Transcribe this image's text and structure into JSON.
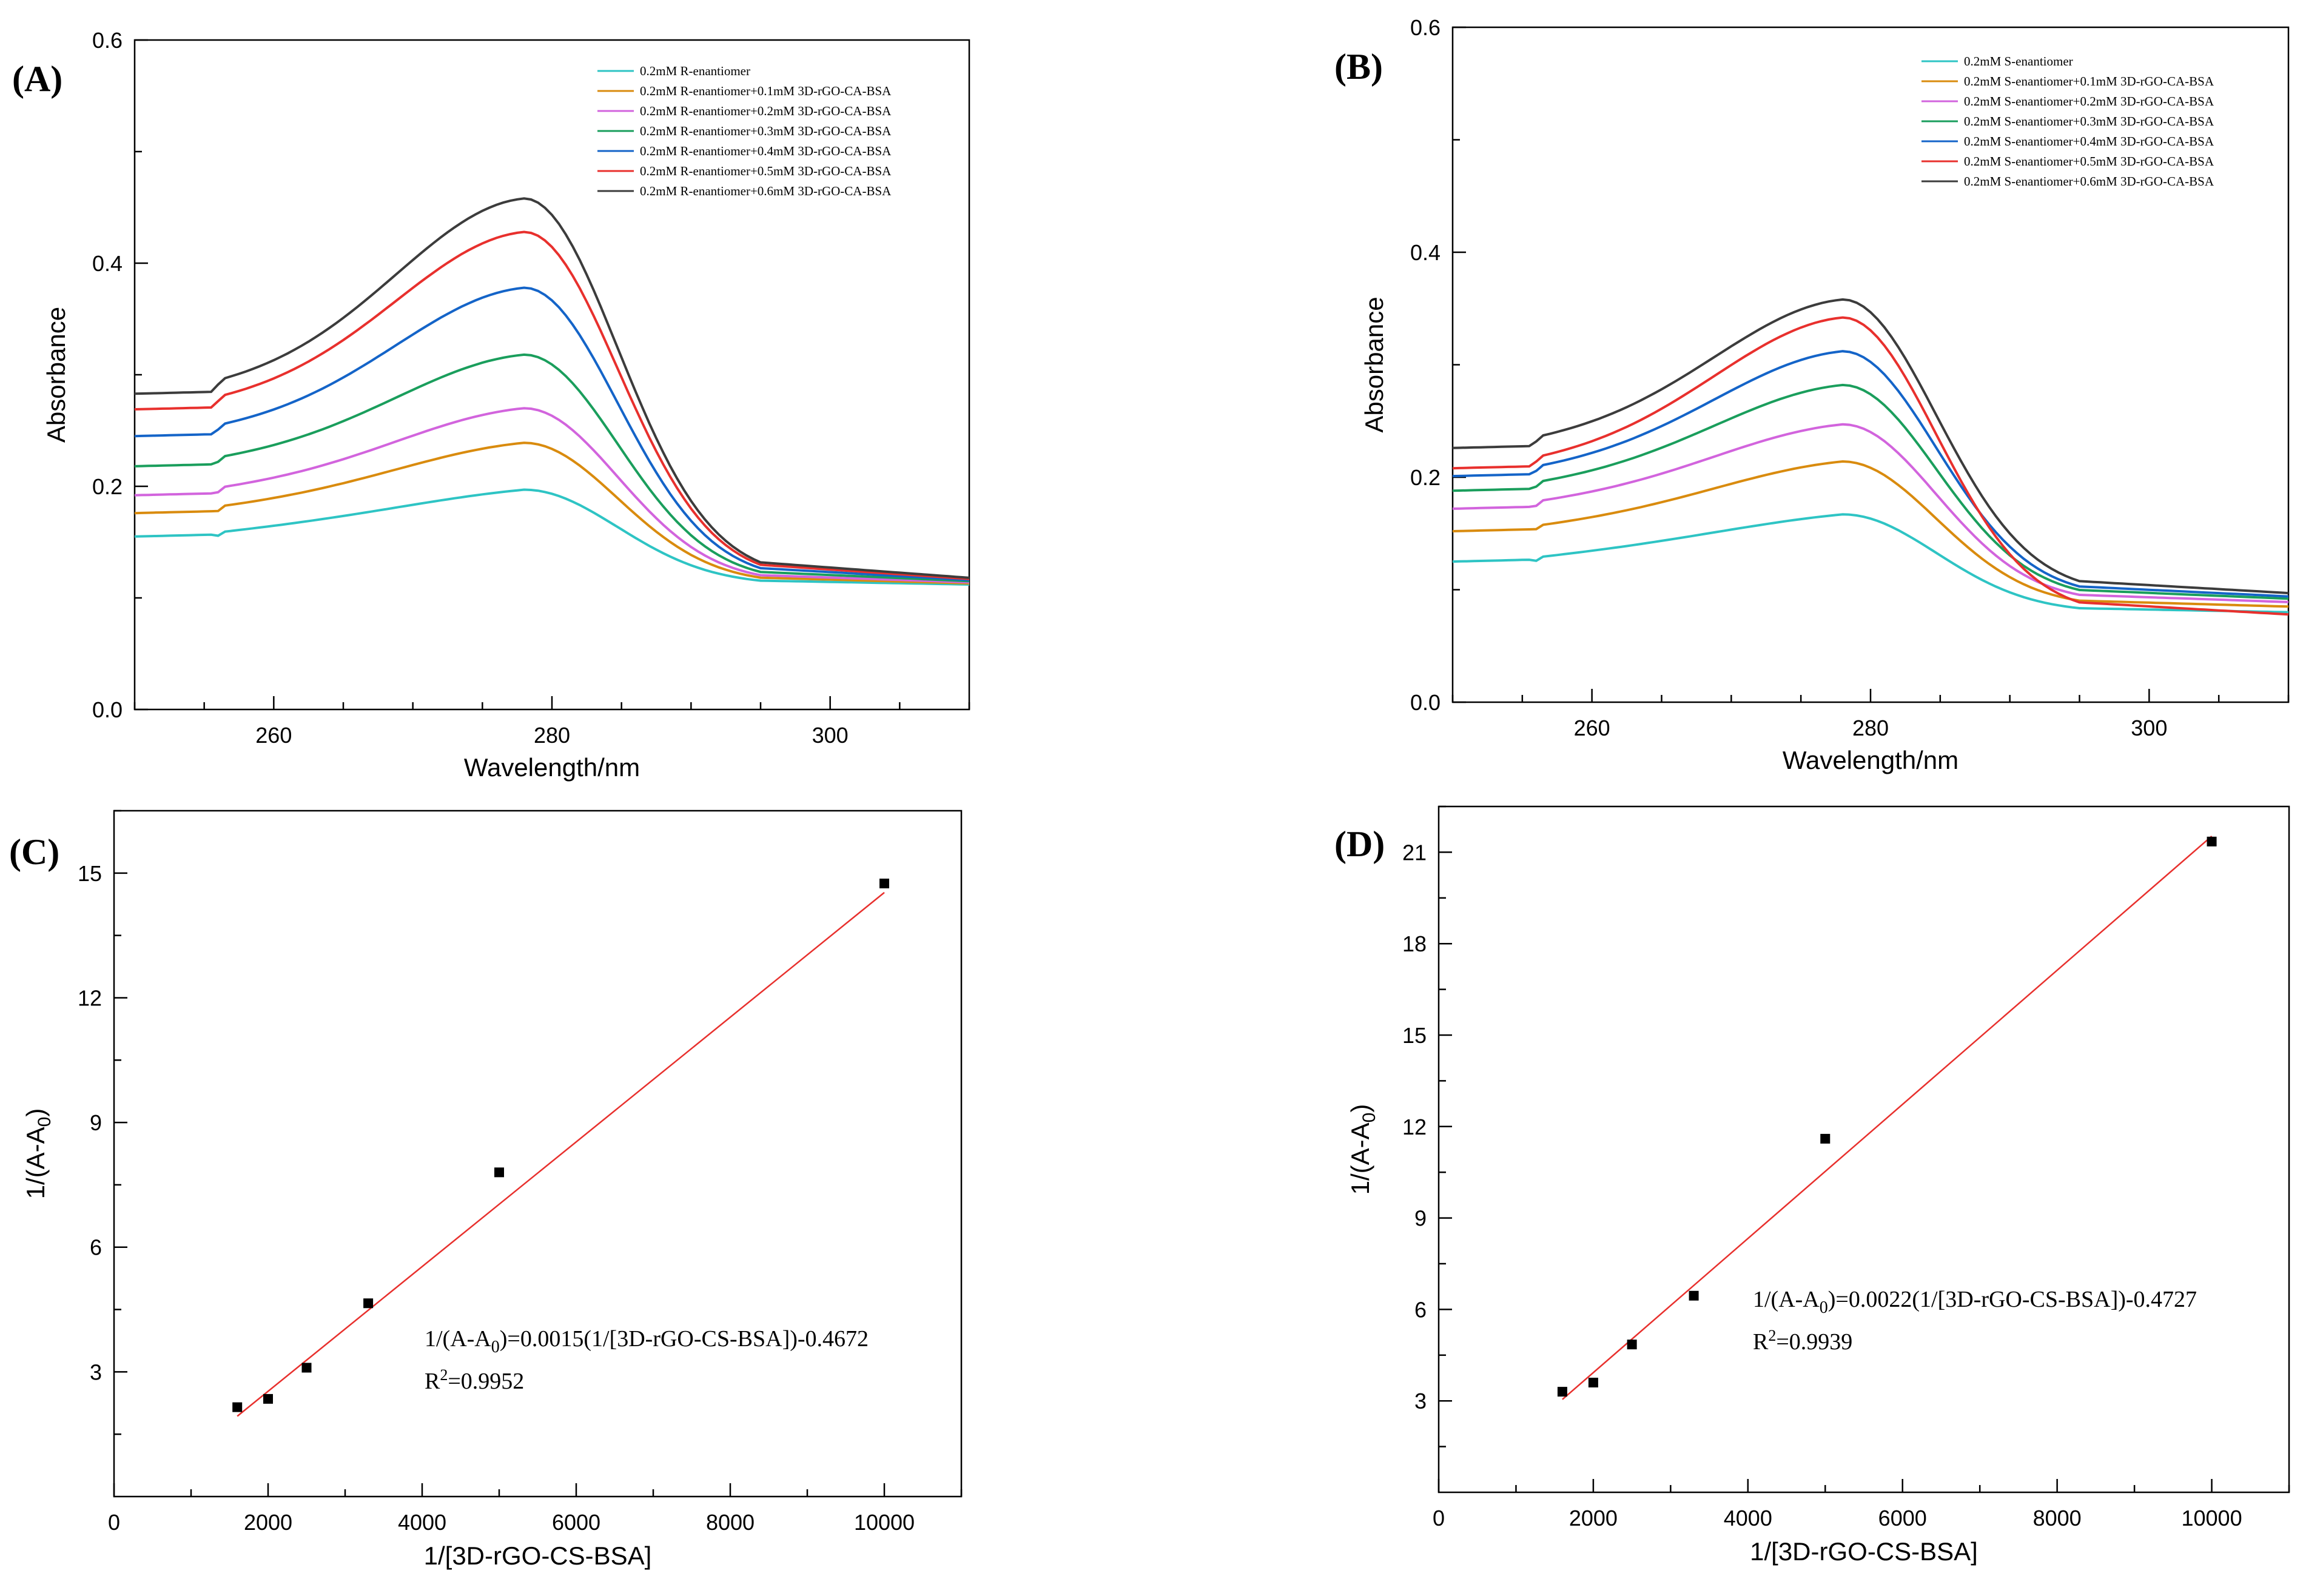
{
  "colors": {
    "series": [
      "#2ec4c4",
      "#d98b0e",
      "#d264dd",
      "#1a9e5c",
      "#1464c8",
      "#e8302d",
      "#3c3c3c"
    ],
    "fit_line": "#e8302d",
    "points": "#000000"
  },
  "chart_data": [
    {
      "id": "A",
      "type": "line",
      "panel_label": "(A)",
      "xlabel": "Wavelength/nm",
      "ylabel": "Absorbance",
      "xlim": [
        250,
        310
      ],
      "ylim": [
        0.0,
        0.6
      ],
      "xticks": [
        260,
        280,
        300
      ],
      "yticks": [
        0.0,
        0.2,
        0.4,
        0.6
      ],
      "ytick_labels": [
        "0.0",
        "0.2",
        "0.4",
        "0.6"
      ],
      "legend": "top-right",
      "x": [
        250,
        253,
        256,
        258,
        260,
        262,
        264,
        266,
        268,
        270,
        272,
        274,
        276,
        278,
        280,
        282,
        284,
        286,
        288,
        290,
        292,
        294,
        296,
        298,
        300,
        303,
        306,
        310
      ],
      "series": [
        {
          "name": "0.2mM R-enantiomer",
          "peak": 0.197,
          "base": 0.155,
          "start_rise": 0.158,
          "end": 0.112
        },
        {
          "name": "0.2mM R-enantiomer+0.1mM 3D-rGO-CA-BSA",
          "peak": 0.239,
          "base": 0.176,
          "start_rise": 0.18,
          "end": 0.113
        },
        {
          "name": "0.2mM R-enantiomer+0.2mM 3D-rGO-CA-BSA",
          "peak": 0.27,
          "base": 0.192,
          "start_rise": 0.196,
          "end": 0.114
        },
        {
          "name": "0.2mM R-enantiomer+0.3mM 3D-rGO-CA-BSA",
          "peak": 0.318,
          "base": 0.218,
          "start_rise": 0.222,
          "end": 0.115
        },
        {
          "name": "0.2mM R-enantiomer+0.4mM 3D-rGO-CA-BSA",
          "peak": 0.378,
          "base": 0.245,
          "start_rise": 0.249,
          "end": 0.116
        },
        {
          "name": "0.2mM R-enantiomer+0.5mM 3D-rGO-CA-BSA",
          "peak": 0.428,
          "base": 0.269,
          "start_rise": 0.273,
          "end": 0.117
        },
        {
          "name": "0.2mM R-enantiomer+0.6mM 3D-rGO-CA-BSA",
          "peak": 0.458,
          "base": 0.283,
          "start_rise": 0.287,
          "end": 0.118
        }
      ]
    },
    {
      "id": "B",
      "type": "line",
      "panel_label": "(B)",
      "xlabel": "Wavelength/nm",
      "ylabel": "Absorbance",
      "xlim": [
        250,
        310
      ],
      "ylim": [
        0.0,
        0.6
      ],
      "xticks": [
        260,
        280,
        300
      ],
      "yticks": [
        0.0,
        0.2,
        0.4,
        0.6
      ],
      "ytick_labels": [
        "0.0",
        "0.2",
        "0.4",
        "0.6"
      ],
      "legend": "top-right",
      "series": [
        {
          "name": "0.2mM S-enantiomer",
          "peak": 0.167,
          "base": 0.125,
          "start_rise": 0.128,
          "end": 0.08
        },
        {
          "name": "0.2mM S-enantiomer+0.1mM 3D-rGO-CA-BSA",
          "peak": 0.214,
          "base": 0.152,
          "start_rise": 0.155,
          "end": 0.085
        },
        {
          "name": "0.2mM S-enantiomer+0.2mM 3D-rGO-CA-BSA",
          "peak": 0.247,
          "base": 0.172,
          "start_rise": 0.176,
          "end": 0.089
        },
        {
          "name": "0.2mM S-enantiomer+0.3mM 3D-rGO-CA-BSA",
          "peak": 0.282,
          "base": 0.188,
          "start_rise": 0.192,
          "end": 0.092
        },
        {
          "name": "0.2mM S-enantiomer+0.4mM 3D-rGO-CA-BSA",
          "peak": 0.312,
          "base": 0.201,
          "start_rise": 0.205,
          "end": 0.094
        },
        {
          "name": "0.2mM S-enantiomer+0.5mM 3D-rGO-CA-BSA",
          "peak": 0.342,
          "base": 0.208,
          "start_rise": 0.212,
          "end": 0.078
        },
        {
          "name": "0.2mM S-enantiomer+0.6mM 3D-rGO-CA-BSA",
          "peak": 0.358,
          "base": 0.226,
          "start_rise": 0.23,
          "end": 0.097
        }
      ]
    },
    {
      "id": "C",
      "type": "scatter",
      "panel_label": "(C)",
      "xlabel": "1/[3D-rGO-CS-BSA]",
      "ylabel_main": "1/(A-A",
      "ylabel_sub": "0",
      "ylabel_end": ")",
      "xlim": [
        0,
        11000
      ],
      "ylim": [
        0,
        16.5
      ],
      "xticks": [
        0,
        2000,
        4000,
        6000,
        8000,
        10000
      ],
      "yticks": [
        3,
        6,
        9,
        12,
        15
      ],
      "points": [
        {
          "x": 1600,
          "y": 2.15
        },
        {
          "x": 2000,
          "y": 2.35
        },
        {
          "x": 2500,
          "y": 3.1
        },
        {
          "x": 3300,
          "y": 4.65
        },
        {
          "x": 5000,
          "y": 7.8
        },
        {
          "x": 10000,
          "y": 14.75
        }
      ],
      "fit": {
        "slope": 0.0015,
        "intercept": -0.4672,
        "x_range": [
          1600,
          10000
        ]
      },
      "equation_a": "1/(A-A",
      "equation_sub": "0",
      "equation_b": ")=0.0015(1/[3D-rGO-CS-BSA])-0.4672",
      "r2_a": "R",
      "r2_sup": "2",
      "r2_b": "=0.9952"
    },
    {
      "id": "D",
      "type": "scatter",
      "panel_label": "(D)",
      "xlabel": "1/[3D-rGO-CS-BSA]",
      "ylabel_main": "1/(A-A",
      "ylabel_sub": "0",
      "ylabel_end": ")",
      "xlim": [
        0,
        11000
      ],
      "ylim": [
        0,
        22.5
      ],
      "xticks": [
        0,
        2000,
        4000,
        6000,
        8000,
        10000
      ],
      "yticks": [
        3,
        6,
        9,
        12,
        15,
        18,
        21
      ],
      "points": [
        {
          "x": 1600,
          "y": 3.3
        },
        {
          "x": 2000,
          "y": 3.6
        },
        {
          "x": 2500,
          "y": 4.85
        },
        {
          "x": 3300,
          "y": 6.45
        },
        {
          "x": 5000,
          "y": 11.6
        },
        {
          "x": 10000,
          "y": 21.35
        }
      ],
      "fit": {
        "slope": 0.0022,
        "intercept": -0.4727,
        "x_range": [
          1600,
          10000
        ]
      },
      "equation_a": "1/(A-A",
      "equation_sub": "0",
      "equation_b": ")=0.0022(1/[3D-rGO-CS-BSA])-0.4727",
      "r2_a": "R",
      "r2_sup": "2",
      "r2_b": "=0.9939"
    }
  ]
}
